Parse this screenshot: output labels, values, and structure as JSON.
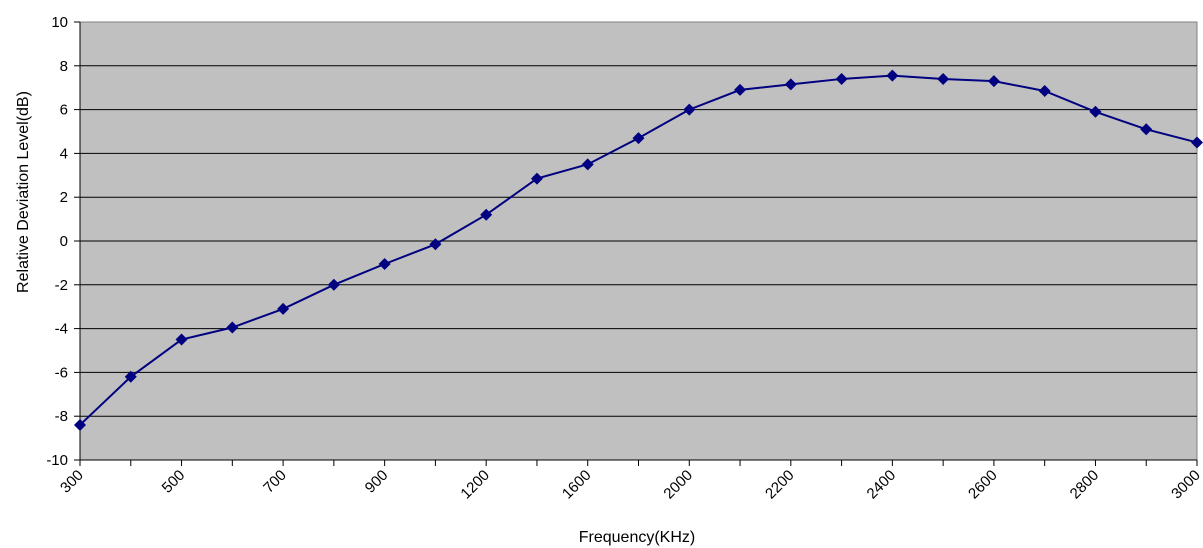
{
  "chart_data": {
    "type": "line",
    "title": "",
    "xlabel": "Frequency(KHz)",
    "ylabel": "Relative Deviation Level(dB)",
    "ylim": [
      -10,
      10
    ],
    "yticks": [
      "10",
      "8",
      "6",
      "4",
      "2",
      "0",
      "-2",
      "-4",
      "-6",
      "-8",
      "-10"
    ],
    "ytick_values": [
      10,
      8,
      6,
      4,
      2,
      0,
      -2,
      -4,
      -6,
      -8,
      -10
    ],
    "x_tick_labels": [
      "300",
      "500",
      "700",
      "900",
      "1200",
      "1600",
      "2000",
      "2200",
      "2400",
      "2600",
      "2800",
      "3000"
    ],
    "x_tick_label_indices": [
      0,
      2,
      4,
      6,
      8,
      10,
      12,
      14,
      16,
      18,
      20,
      22
    ],
    "x_category_count": 23,
    "grid": true,
    "background_color": "#c0c0c0",
    "series": [
      {
        "color": "#000080",
        "marker": "diamond",
        "values": [
          -8.4,
          -6.2,
          -4.5,
          -3.95,
          -3.1,
          -2.0,
          -1.05,
          -0.15,
          1.2,
          2.85,
          3.5,
          4.7,
          6.0,
          6.9,
          7.15,
          7.4,
          7.55,
          7.4,
          7.3,
          6.85,
          5.9,
          5.1,
          4.5
        ]
      }
    ]
  }
}
